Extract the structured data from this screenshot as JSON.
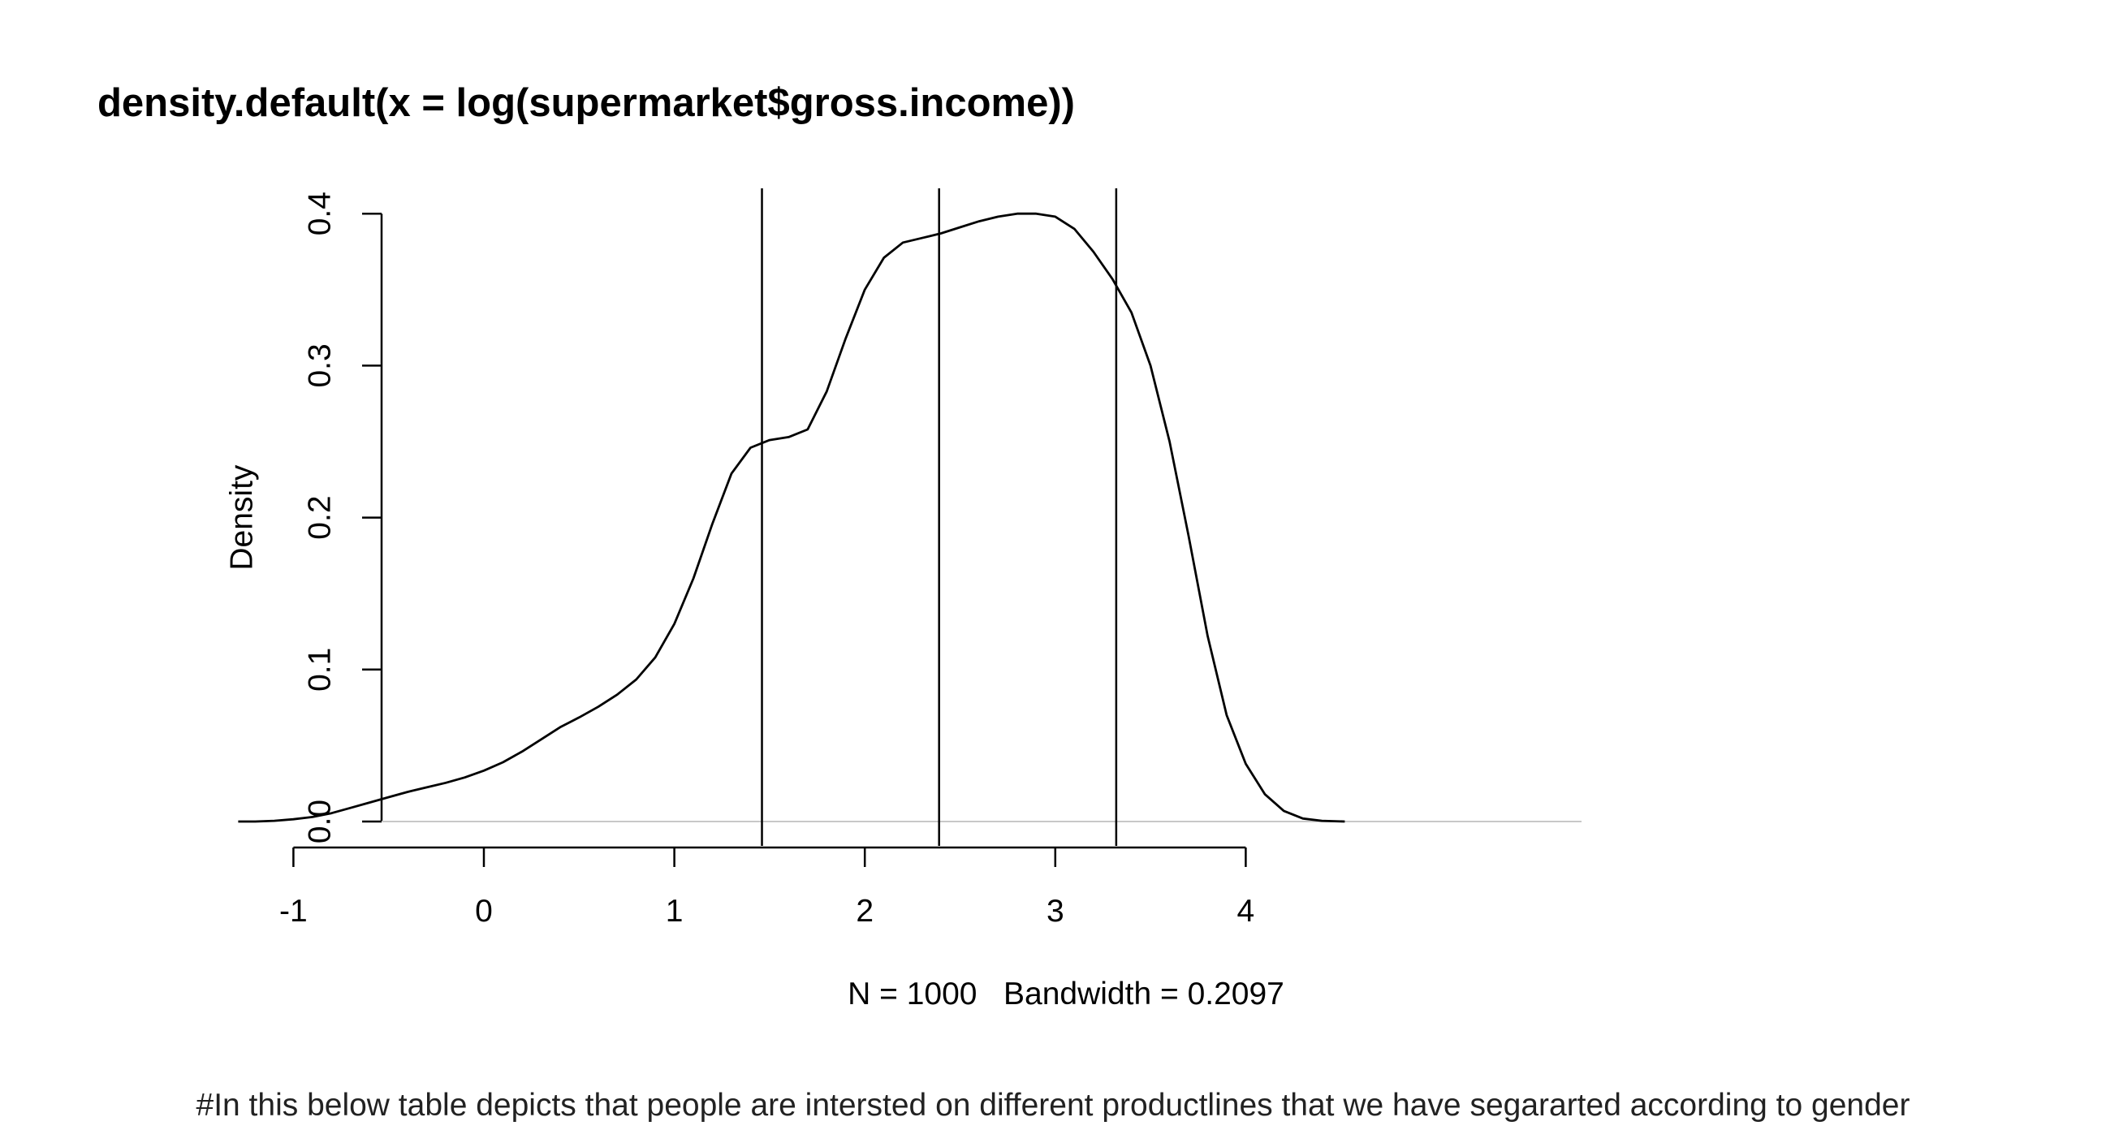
{
  "chart_data": {
    "type": "line",
    "title": "density.default(x = log(supermarket$gross.income))",
    "xlabel": "N = 1000   Bandwidth = 0.2097",
    "ylabel": "Density",
    "xlim": [
      -1.5,
      4.8
    ],
    "ylim": [
      0,
      0.4
    ],
    "x_ticks": [
      -1,
      0,
      1,
      2,
      3,
      4
    ],
    "x_tick_labels": [
      "-1",
      "0",
      "1",
      "2",
      "3",
      "4"
    ],
    "y_ticks": [
      0.0,
      0.1,
      0.2,
      0.3,
      0.4
    ],
    "y_tick_labels": [
      "0.0",
      "0.1",
      "0.2",
      "0.3",
      "0.4"
    ],
    "series": [
      {
        "x": [
          -1.29,
          -1.2,
          -1.1,
          -1.0,
          -0.9,
          -0.8,
          -0.7,
          -0.6,
          -0.5,
          -0.4,
          -0.3,
          -0.2,
          -0.1,
          0.0,
          0.1,
          0.2,
          0.3,
          0.4,
          0.5,
          0.6,
          0.7,
          0.8,
          0.9,
          1.0,
          1.1,
          1.2,
          1.3,
          1.4,
          1.5,
          1.6,
          1.7,
          1.8,
          1.9,
          2.0,
          2.1,
          2.2,
          2.3,
          2.4,
          2.5,
          2.6,
          2.7,
          2.8,
          2.9,
          3.0,
          3.1,
          3.2,
          3.3,
          3.4,
          3.5,
          3.6,
          3.7,
          3.8,
          3.9,
          4.0,
          4.1,
          4.2,
          4.3,
          4.4,
          4.52
        ],
        "y": [
          0.0,
          0.0,
          0.0005,
          0.0015,
          0.003,
          0.0055,
          0.009,
          0.0125,
          0.016,
          0.0195,
          0.0225,
          0.0255,
          0.029,
          0.0335,
          0.039,
          0.046,
          0.054,
          0.062,
          0.0685,
          0.0755,
          0.0835,
          0.0935,
          0.108,
          0.13,
          0.16,
          0.196,
          0.229,
          0.246,
          0.251,
          0.253,
          0.258,
          0.283,
          0.318,
          0.35,
          0.371,
          0.381,
          0.384,
          0.387,
          0.391,
          0.395,
          0.398,
          0.4,
          0.4,
          0.398,
          0.39,
          0.375,
          0.357,
          0.335,
          0.3,
          0.25,
          0.188,
          0.122,
          0.07,
          0.038,
          0.018,
          0.007,
          0.002,
          0.0005,
          0.0
        ]
      }
    ],
    "vertical_lines_x": [
      1.46,
      2.39,
      3.32
    ],
    "baseline_y": 0,
    "colors": {
      "curve": "#000000",
      "vertical_lines": "#000000",
      "baseline": "#c8c8c8",
      "axes": "#000000"
    },
    "grid": false
  },
  "caption": "#In this below table depicts that people are intersted on different productlines that we have segararted according to gender"
}
